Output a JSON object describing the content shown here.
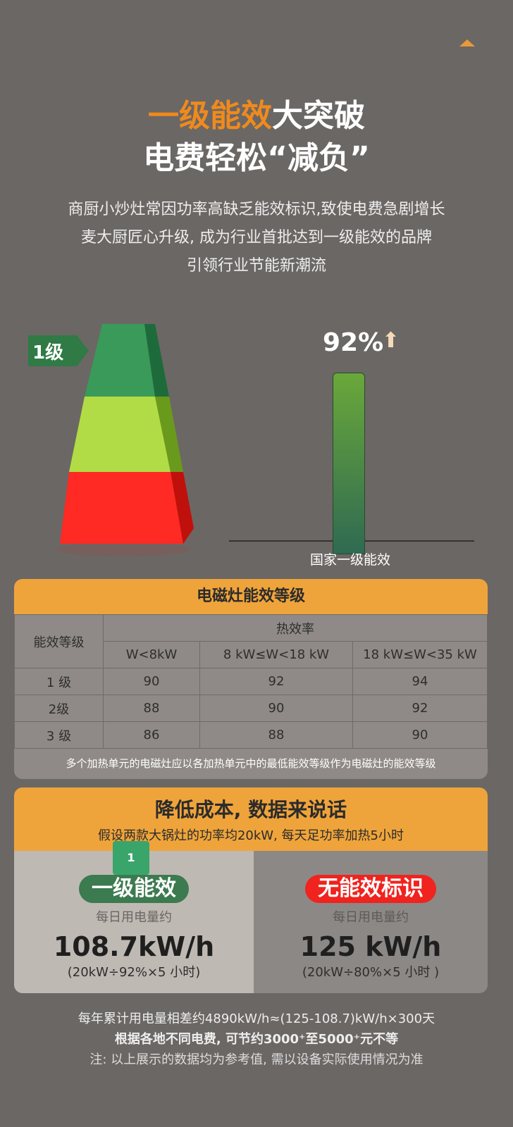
{
  "header": {
    "title_highlight": "一级能效",
    "title_rest": "大突破",
    "subtitle": "电费轻松“减负”",
    "paragraph": [
      "商厨小炒灶常因功率高缺乏能效标识,致使电费急剧增长",
      "麦大厨匠心升级, 成为行业首批达到一级能效的品牌",
      "引领行业节能新潮流"
    ]
  },
  "pyramid": {
    "tag": "1级",
    "levels_colors": [
      "#3a9a5a",
      "#b2dc45",
      "#ff2a23"
    ]
  },
  "bar": {
    "value_label": "92%",
    "value": 92,
    "label": "国家一级能效",
    "color": "#4a8a40"
  },
  "table": {
    "title": "电磁灶能效等级",
    "row_header": "能效等级",
    "group_header": "热效率",
    "columns": [
      "W<8kW",
      "8 kW≤W<18 kW",
      "18 kW≤W<35 kW"
    ],
    "rows": [
      {
        "level": "1 级",
        "values": [
          "90",
          "92",
          "94"
        ]
      },
      {
        "level": "2级",
        "values": [
          "88",
          "90",
          "92"
        ]
      },
      {
        "level": "3 级",
        "values": [
          "86",
          "88",
          "90"
        ]
      }
    ],
    "note": "多个加热单元的电磁灶应以各加热单元中的最低能效等级作为电磁灶的能效等级"
  },
  "cost": {
    "title": "降低成本, 数据来说话",
    "subtitle": "假设两款大锅灶的功率均20kW, 每天足功率加热5小时",
    "left": {
      "badge_num": "1",
      "pill": "一级能效",
      "label": "每日用电量约",
      "value": "108.7kW/h",
      "formula": "(20kW÷92%×5 小时)"
    },
    "right": {
      "pill": "无能效标识",
      "label": "每日用电量约",
      "value": "125 kW/h",
      "formula": "(20kW÷80%×5 小时 )"
    }
  },
  "footer": [
    "每年累计用电量相差约4890kW/h≈(125-108.7)kW/h×300天",
    "根据各地不同电费, 可节约3000⁺至5000⁺元不等",
    "注: 以上展示的数据均为参考值, 需以设备实际使用情况为准"
  ]
}
